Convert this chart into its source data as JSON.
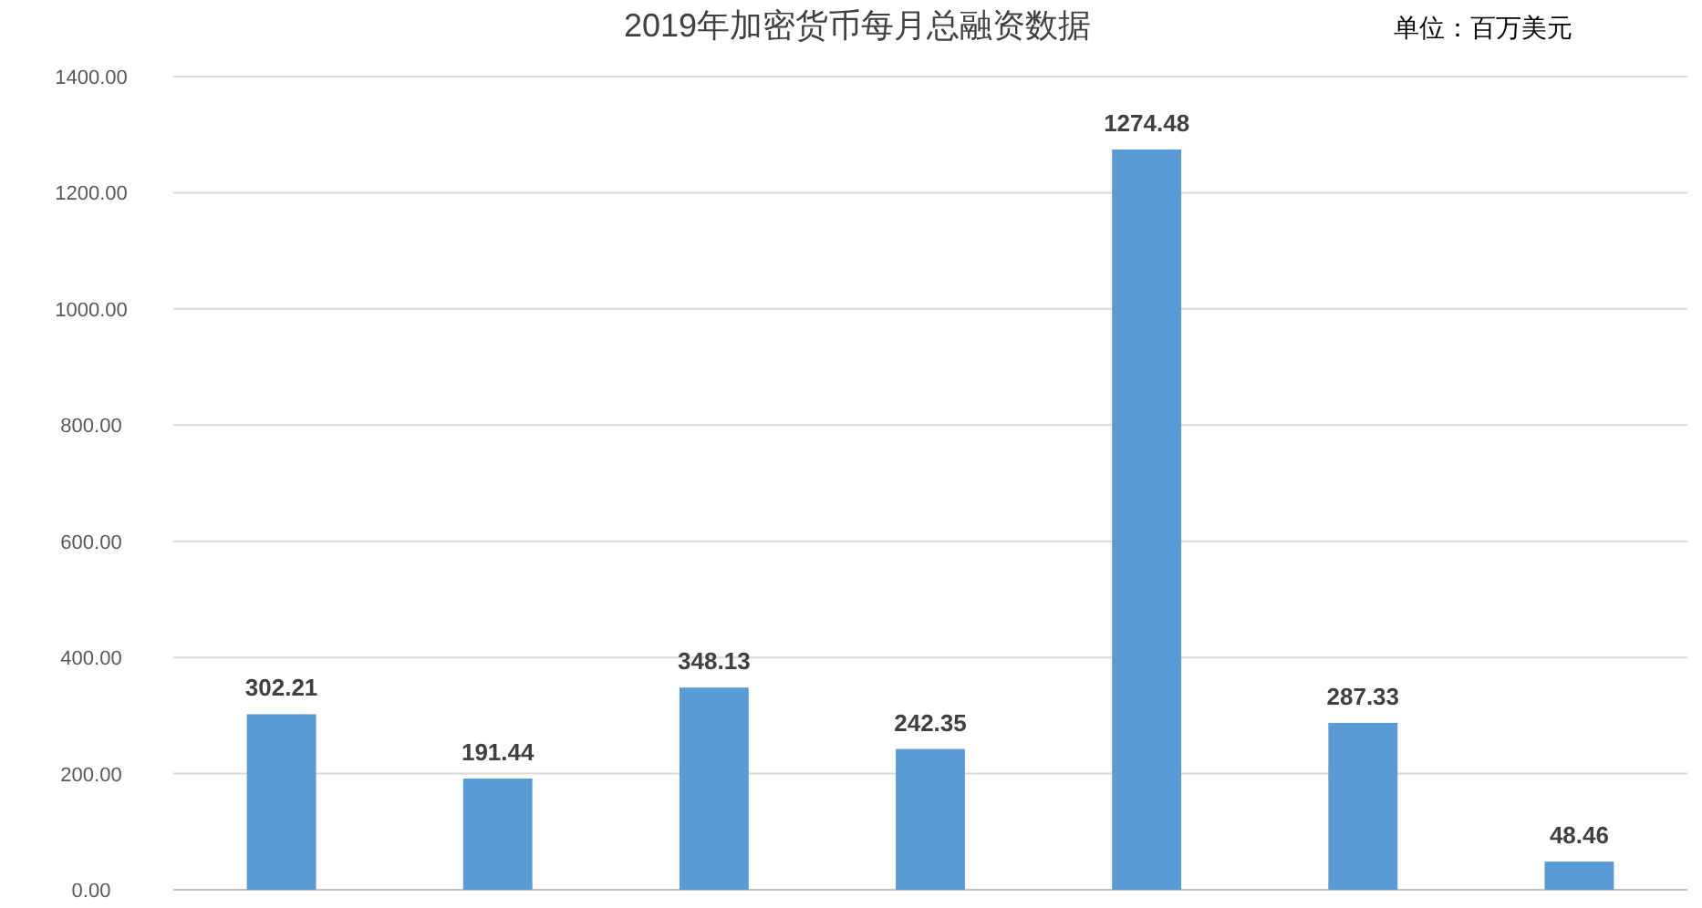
{
  "chart_data": {
    "type": "bar",
    "title": "2019年加密货币每月总融资数据",
    "annotations": [
      "单位：百万美元"
    ],
    "categories": [
      null,
      null,
      null,
      null,
      null,
      null,
      null
    ],
    "values": [
      302.21,
      191.44,
      348.13,
      242.35,
      1274.48,
      287.33,
      48.46
    ],
    "value_labels": [
      "302.21",
      "191.44",
      "348.13",
      "242.35",
      "1274.48",
      "287.33",
      "48.46"
    ],
    "color": "#5b9bd5",
    "ylim": [
      0,
      1400
    ],
    "yticks": [
      {
        "value": 0,
        "label": "0.00"
      },
      {
        "value": 200,
        "label": "200.00"
      },
      {
        "value": 400,
        "label": "400.00"
      },
      {
        "value": 600,
        "label": "600.00"
      },
      {
        "value": 800,
        "label": "800.00"
      },
      {
        "value": 1000,
        "label": "1000.00"
      },
      {
        "value": 1200,
        "label": "1200.00"
      },
      {
        "value": 1400,
        "label": "1400.00"
      }
    ],
    "grid": "y"
  }
}
